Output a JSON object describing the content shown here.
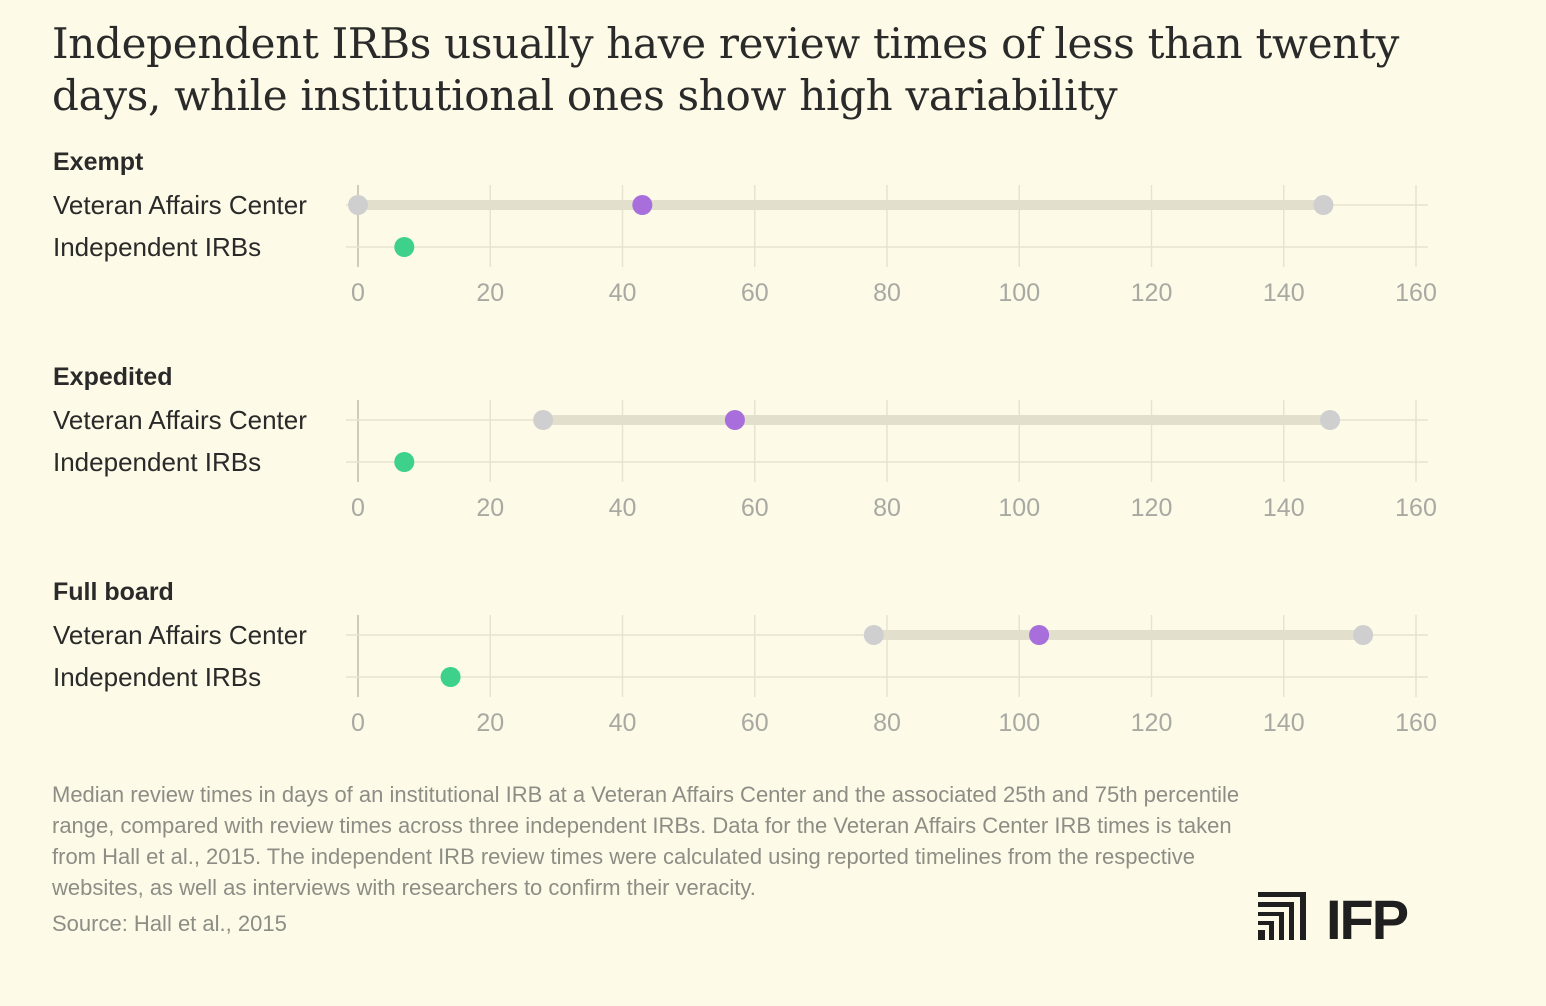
{
  "title": "Independent IRBs usually have review times of less than twenty days, while institutional ones show high variability",
  "note": "Median review times in days of an institutional IRB at a Veteran Affairs Center and the associated 25th and 75th percentile range, compared with review times across three independent IRBs. Data for the Veteran Affairs Center IRB times is taken from Hall et al., 2015. The independent IRB review times were calculated using reported timelines from the respective websites, as well as interviews with researchers to confirm their veracity.",
  "source": "Source: Hall et al., 2015",
  "logo_text": "IFP",
  "colors": {
    "background": "#fdfbe7",
    "range_point": "#cfcfd0",
    "range_bar": "#e2dfcd",
    "median": "#a86fdc",
    "independent": "#3dd18b",
    "grid": "#e6e3ce",
    "axis_text": "#a9a9a3"
  },
  "chart_data": [
    {
      "type": "dumbbell",
      "title": "Exempt",
      "xlim": [
        0,
        160
      ],
      "ticks": [
        "0",
        "20",
        "40",
        "60",
        "80",
        "100",
        "120",
        "140",
        "160"
      ],
      "rows": [
        {
          "label": "Veteran Affairs Center",
          "p25": 0,
          "median": 43,
          "p75": 146
        },
        {
          "label": "Independent IRBs",
          "value": 7
        }
      ]
    },
    {
      "type": "dumbbell",
      "title": "Expedited",
      "xlim": [
        0,
        160
      ],
      "ticks": [
        "0",
        "20",
        "40",
        "60",
        "80",
        "100",
        "120",
        "140",
        "160"
      ],
      "rows": [
        {
          "label": "Veteran Affairs Center",
          "p25": 28,
          "median": 57,
          "p75": 147
        },
        {
          "label": "Independent IRBs",
          "value": 7
        }
      ]
    },
    {
      "type": "dumbbell",
      "title": "Full board",
      "xlim": [
        0,
        160
      ],
      "ticks": [
        "0",
        "20",
        "40",
        "60",
        "80",
        "100",
        "120",
        "140",
        "160"
      ],
      "rows": [
        {
          "label": "Veteran Affairs Center",
          "p25": 78,
          "median": 103,
          "p75": 152
        },
        {
          "label": "Independent IRBs",
          "value": 14
        }
      ]
    }
  ]
}
